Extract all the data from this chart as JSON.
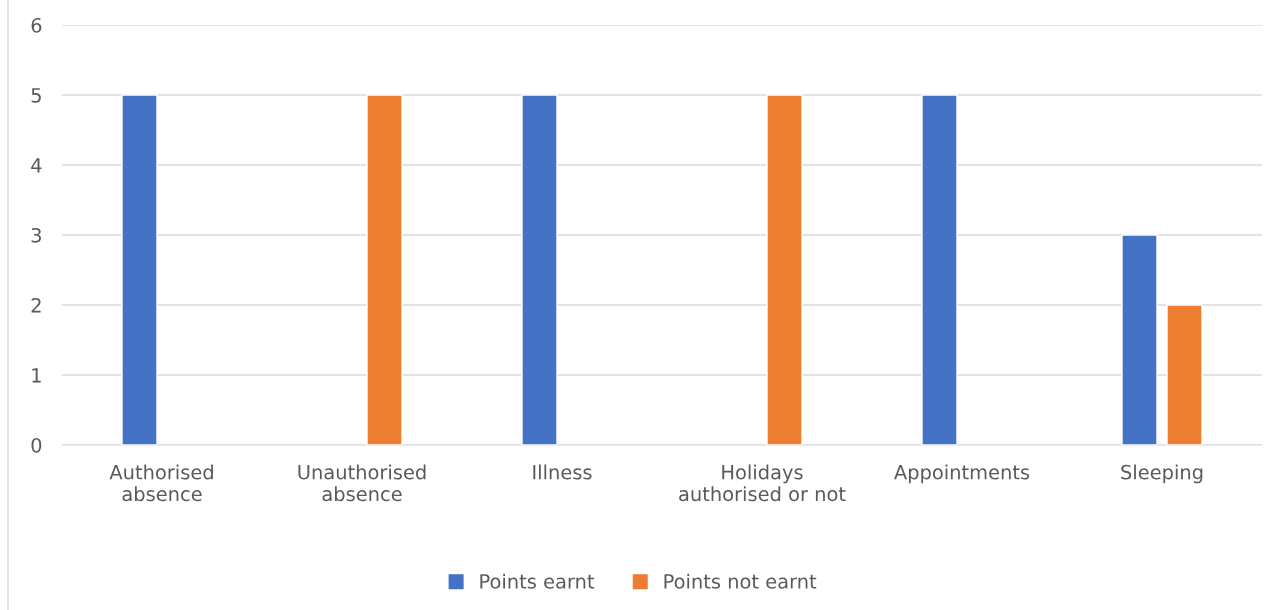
{
  "chart_data": {
    "type": "bar",
    "categories": [
      "Authorised\nabsence",
      "Unauthorised\nabsence",
      "Illness",
      "Holidays\nauthorised or not",
      "Appointments",
      "Sleeping"
    ],
    "series": [
      {
        "name": "Points earnt",
        "color": "#4472c4",
        "values": [
          5,
          null,
          5,
          null,
          5,
          3
        ]
      },
      {
        "name": "Points not earnt",
        "color": "#ed7d31",
        "values": [
          null,
          5,
          null,
          5,
          null,
          2
        ]
      }
    ],
    "ylim": [
      0,
      6
    ],
    "yticks": [
      0,
      1,
      2,
      3,
      4,
      5,
      6
    ],
    "grid": "y",
    "legend": "bottom"
  }
}
